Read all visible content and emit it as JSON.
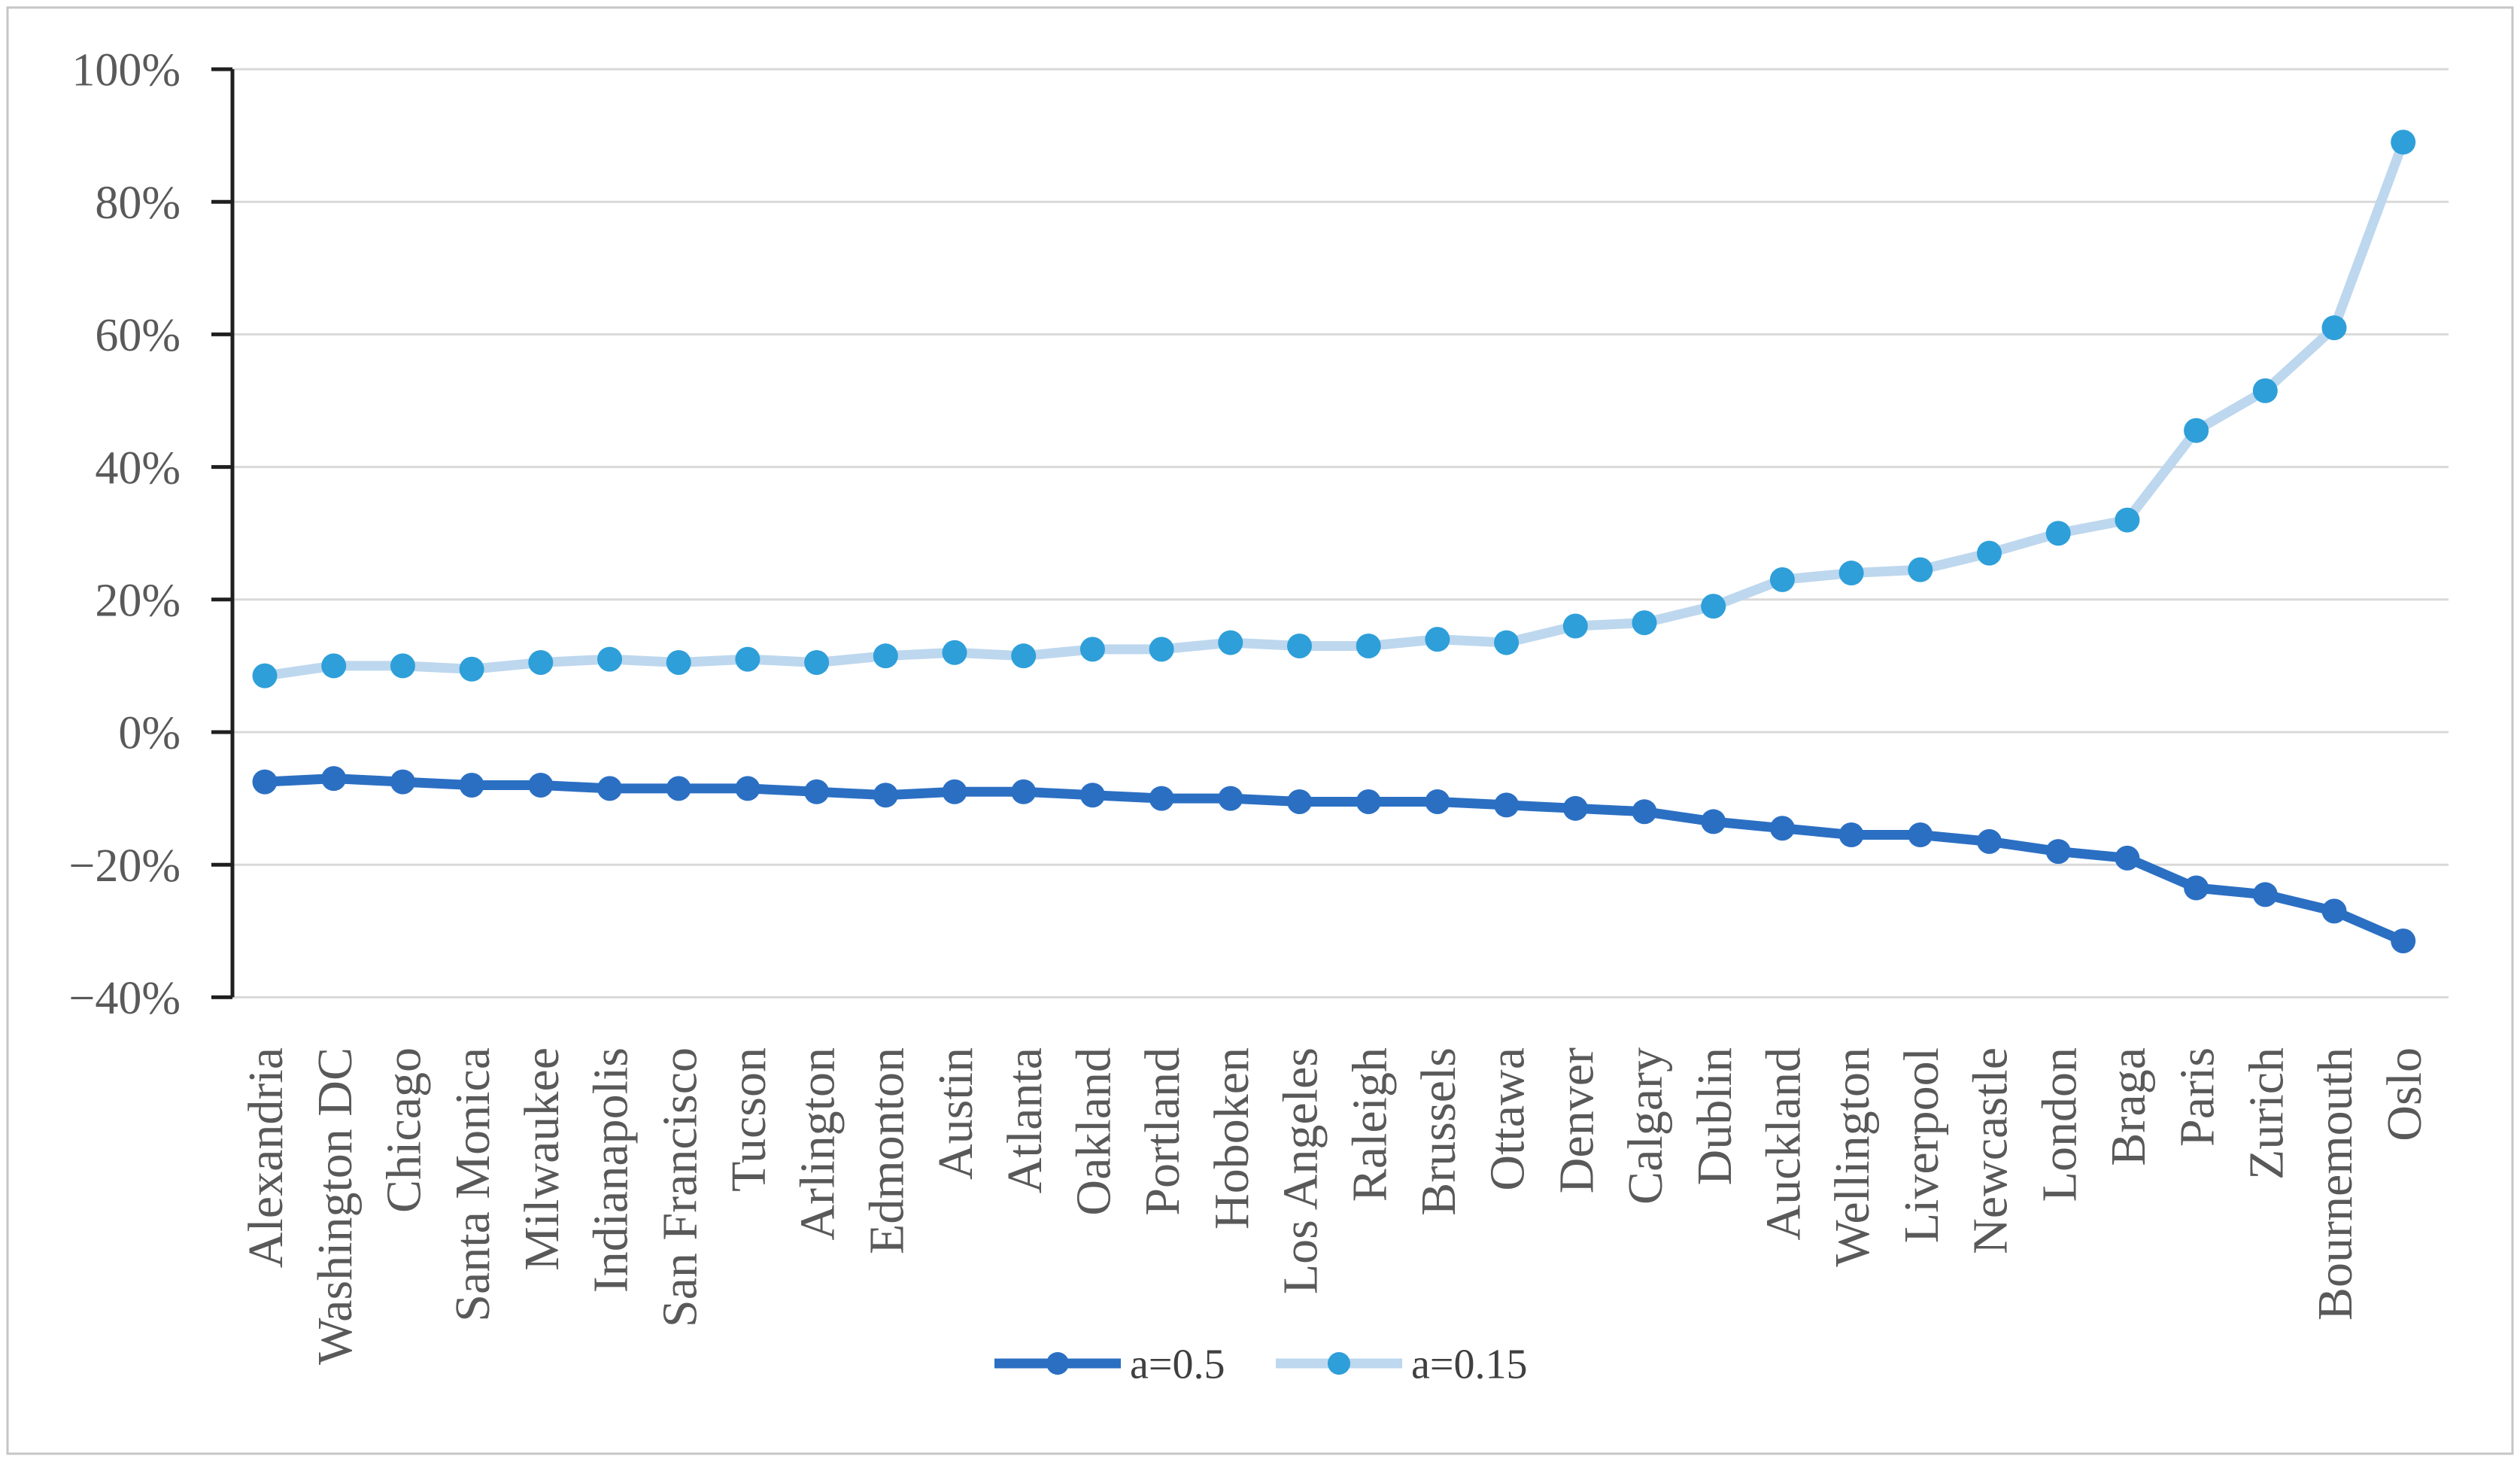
{
  "colors": {
    "background": "#ffffff",
    "figure_border": "#c6c6c6",
    "gridline": "#d9d9d9",
    "axis": "#1f1f1f",
    "tick_label": "#595959",
    "legend_text": "#3f3f3f",
    "series_dark_blue": "#2b6fc3",
    "series_light_blue_line": "#bdd7ee",
    "series_light_blue_marker": "#2e9fd9"
  },
  "legend": {
    "items": [
      {
        "label": "a=0.5",
        "line_color": "#2b6fc3",
        "marker_color": "#2b6fc3"
      },
      {
        "label": "a=0.15",
        "line_color": "#bdd7ee",
        "marker_color": "#2e9fd9"
      }
    ],
    "position": "bottom-center"
  },
  "chart_data": {
    "type": "line",
    "title": "",
    "xlabel": "",
    "ylabel": "",
    "ylim": [
      -40,
      100
    ],
    "grid": true,
    "legend_position": "bottom-center",
    "yticks": [
      {
        "label": "100%",
        "value": 100
      },
      {
        "label": "80%",
        "value": 80
      },
      {
        "label": "60%",
        "value": 60
      },
      {
        "label": "40%",
        "value": 40
      },
      {
        "label": "20%",
        "value": 20
      },
      {
        "label": "0%",
        "value": 0
      },
      {
        "label": "−20%",
        "value": -20
      },
      {
        "label": "−40%",
        "value": -40
      }
    ],
    "categories": [
      "Alexandria",
      "Washington DC",
      "Chicago",
      "Santa Monica",
      "Milwaukee",
      "Indianapolis",
      "San Francisco",
      "Tucson",
      "Arlington",
      "Edmonton",
      "Austin",
      "Atlanta",
      "Oakland",
      "Portland",
      "Hoboken",
      "Los Angeles",
      "Raleigh",
      "Brussels",
      "Ottawa",
      "Denver",
      "Calgary",
      "Dublin",
      "Auckland",
      "Wellington",
      "Liverpool",
      "Newcastle",
      "London",
      "Braga",
      "Paris",
      "Zurich",
      "Bournemouth",
      "Oslo"
    ],
    "series": [
      {
        "name": "a=0.5",
        "line_color": "#2b6fc3",
        "marker_color": "#2b6fc3",
        "values": [
          -7.5,
          -7,
          -7.5,
          -8,
          -8,
          -8.5,
          -8.5,
          -8.5,
          -9,
          -9.5,
          -9,
          -9,
          -9.5,
          -10,
          -10,
          -10.5,
          -10.5,
          -10.5,
          -11,
          -11.5,
          -12,
          -13.5,
          -14.5,
          -15.5,
          -15.5,
          -16.5,
          -18,
          -19,
          -23.5,
          -24.5,
          -27,
          -31.5
        ]
      },
      {
        "name": "a=0.15",
        "line_color": "#bdd7ee",
        "marker_color": "#2e9fd9",
        "values": [
          8.5,
          10,
          10,
          9.5,
          10.5,
          11,
          10.5,
          11,
          10.5,
          11.5,
          12,
          11.5,
          12.5,
          12.5,
          13.5,
          13,
          13,
          14,
          13.5,
          16,
          16.5,
          19,
          23,
          24,
          24.5,
          27,
          30,
          32,
          45.5,
          51.5,
          61,
          89
        ]
      }
    ]
  }
}
